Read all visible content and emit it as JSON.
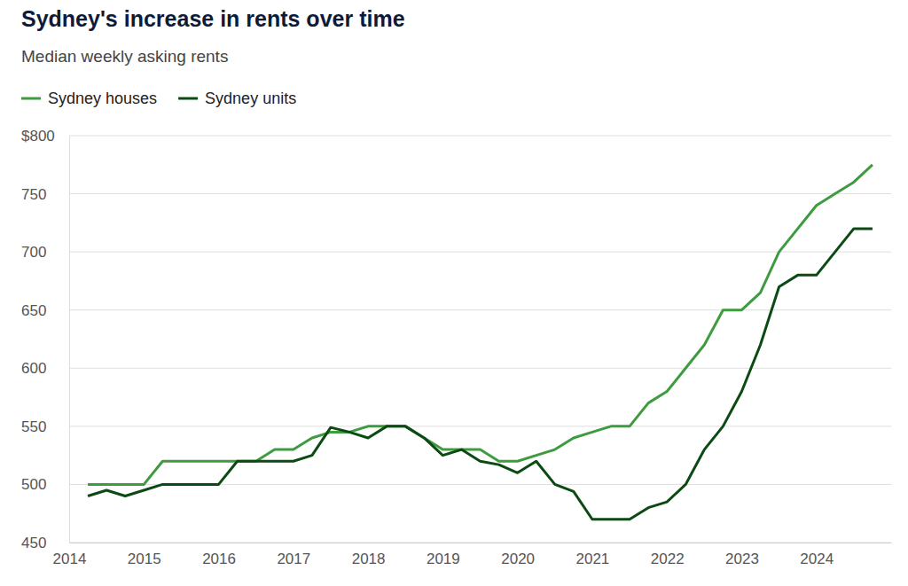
{
  "chart_data": {
    "type": "line",
    "title": "Sydney's increase in rents over time",
    "subtitle": "Median weekly asking rents",
    "x": [
      2014.25,
      2014.5,
      2014.75,
      2015,
      2015.25,
      2015.5,
      2015.75,
      2016,
      2016.25,
      2016.5,
      2016.75,
      2017,
      2017.25,
      2017.5,
      2017.75,
      2018,
      2018.25,
      2018.5,
      2018.75,
      2019,
      2019.25,
      2019.5,
      2019.75,
      2020,
      2020.25,
      2020.5,
      2020.75,
      2021,
      2021.25,
      2021.5,
      2021.75,
      2022,
      2022.25,
      2022.5,
      2022.75,
      2023,
      2023.25,
      2023.5,
      2023.75,
      2024,
      2024.25,
      2024.5,
      2024.75
    ],
    "series": [
      {
        "name": "Sydney houses",
        "color": "#3f9b3f",
        "values": [
          500,
          500,
          500,
          500,
          520,
          520,
          520,
          520,
          520,
          520,
          530,
          530,
          540,
          545,
          545,
          550,
          550,
          550,
          540,
          530,
          530,
          530,
          520,
          520,
          525,
          530,
          540,
          545,
          550,
          550,
          570,
          580,
          600,
          620,
          650,
          650,
          665,
          700,
          720,
          740,
          750,
          760,
          775
        ]
      },
      {
        "name": "Sydney units",
        "color": "#0b4a12",
        "values": [
          490,
          495,
          490,
          495,
          500,
          500,
          500,
          500,
          520,
          520,
          520,
          520,
          525,
          549,
          545,
          540,
          550,
          550,
          540,
          525,
          530,
          520,
          517,
          510,
          520,
          500,
          494,
          470,
          470,
          470,
          480,
          485,
          500,
          530,
          550,
          580,
          620,
          670,
          680,
          680,
          700,
          720,
          720
        ]
      }
    ],
    "xlim": [
      2014,
      2025
    ],
    "xticks": [
      2014,
      2015,
      2016,
      2017,
      2018,
      2019,
      2020,
      2021,
      2022,
      2023,
      2024
    ],
    "ylim": [
      450,
      800
    ],
    "yticks": [
      450,
      500,
      550,
      600,
      650,
      700,
      750,
      {
        "value": 800,
        "label": "$800"
      }
    ],
    "grid": true,
    "legend": "top-left"
  }
}
